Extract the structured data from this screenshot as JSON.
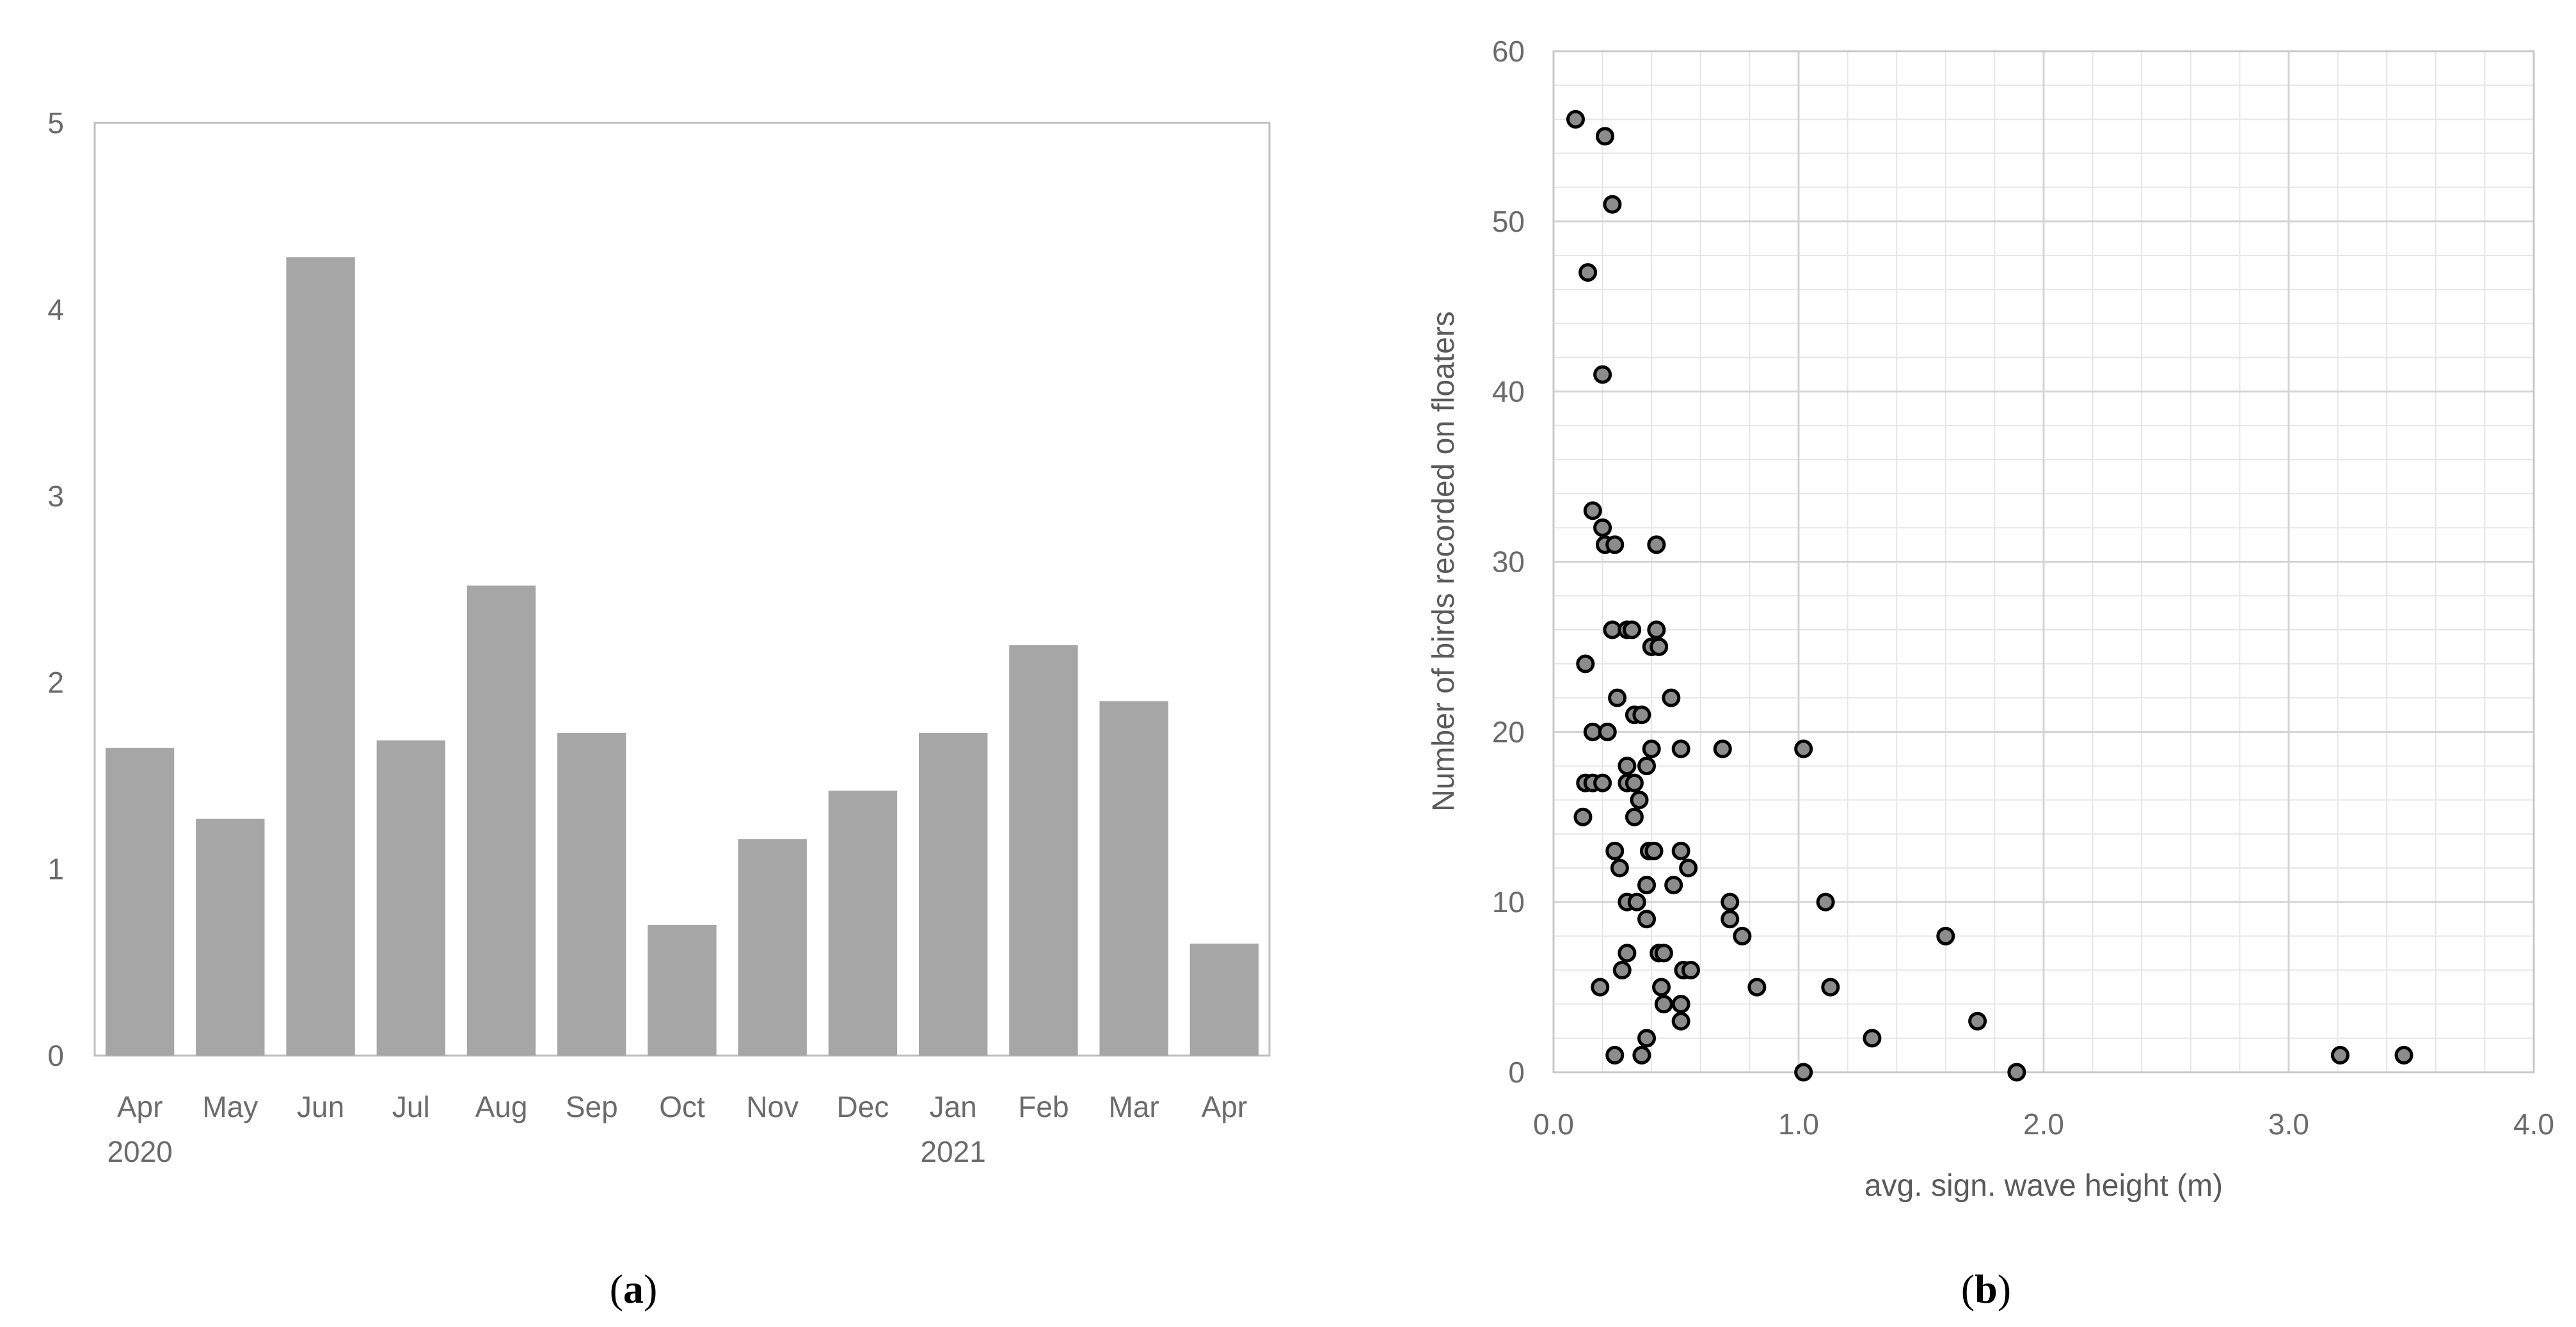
{
  "chart_data": [
    {
      "type": "bar",
      "panel_label": "(a)",
      "panel_letter": "a",
      "title": "",
      "xlabel": "",
      "ylabel": "",
      "ylim": [
        0,
        5
      ],
      "yticks": [
        "0",
        "1",
        "2",
        "3",
        "4",
        "5"
      ],
      "categories": [
        "Apr",
        "May",
        "Jun",
        "Jul",
        "Aug",
        "Sep",
        "Oct",
        "Nov",
        "Dec",
        "Jan",
        "Feb",
        "Mar",
        "Apr"
      ],
      "year_labels": [
        {
          "index": 0,
          "label": "2020"
        },
        {
          "index": 9,
          "label": "2021"
        }
      ],
      "values": [
        1.65,
        1.27,
        4.28,
        1.69,
        2.52,
        1.73,
        0.7,
        1.16,
        1.42,
        1.73,
        2.2,
        1.9,
        0.6
      ],
      "grid": false,
      "colors": {
        "bar": "#a6a6a6",
        "frame": "#bfbfbf"
      }
    },
    {
      "type": "scatter",
      "panel_label": "(b)",
      "panel_letter": "b",
      "title": "",
      "xlabel": "avg. sign. wave height (m)",
      "ylabel": "Number of birds recorded on floaters",
      "xlim": [
        0,
        4
      ],
      "ylim": [
        0,
        60
      ],
      "xticks": [
        "0.0",
        "1.0",
        "2.0",
        "3.0",
        "4.0"
      ],
      "yticks": [
        "0",
        "10",
        "20",
        "30",
        "40",
        "50",
        "60"
      ],
      "grid": true,
      "colors": {
        "marker_fill": "#8c8c8c",
        "marker_edge": "#000000",
        "grid_major": "#d4d4d4",
        "grid_minor": "#e6e6e6"
      },
      "points": [
        [
          0.09,
          56
        ],
        [
          0.21,
          55
        ],
        [
          0.24,
          51
        ],
        [
          0.14,
          47
        ],
        [
          0.2,
          41
        ],
        [
          0.16,
          33
        ],
        [
          0.2,
          32
        ],
        [
          0.21,
          31
        ],
        [
          0.25,
          31
        ],
        [
          0.42,
          31
        ],
        [
          0.24,
          26
        ],
        [
          0.3,
          26
        ],
        [
          0.32,
          26
        ],
        [
          0.42,
          26
        ],
        [
          0.4,
          25
        ],
        [
          0.43,
          25
        ],
        [
          0.13,
          24
        ],
        [
          0.26,
          22
        ],
        [
          0.48,
          22
        ],
        [
          0.33,
          21
        ],
        [
          0.36,
          21
        ],
        [
          0.16,
          20
        ],
        [
          0.22,
          20
        ],
        [
          0.4,
          19
        ],
        [
          0.52,
          19
        ],
        [
          0.69,
          19
        ],
        [
          1.02,
          19
        ],
        [
          0.3,
          18
        ],
        [
          0.38,
          18
        ],
        [
          0.13,
          17
        ],
        [
          0.16,
          17
        ],
        [
          0.2,
          17
        ],
        [
          0.3,
          17
        ],
        [
          0.33,
          17
        ],
        [
          0.35,
          16
        ],
        [
          0.12,
          15
        ],
        [
          0.33,
          15
        ],
        [
          0.25,
          13
        ],
        [
          0.39,
          13
        ],
        [
          0.41,
          13
        ],
        [
          0.52,
          13
        ],
        [
          0.27,
          12
        ],
        [
          0.55,
          12
        ],
        [
          0.38,
          11
        ],
        [
          0.49,
          11
        ],
        [
          0.3,
          10
        ],
        [
          0.34,
          10
        ],
        [
          0.72,
          10
        ],
        [
          1.11,
          10
        ],
        [
          0.38,
          9
        ],
        [
          0.72,
          9
        ],
        [
          0.77,
          8
        ],
        [
          1.6,
          8
        ],
        [
          0.3,
          7
        ],
        [
          0.43,
          7
        ],
        [
          0.45,
          7
        ],
        [
          0.28,
          6
        ],
        [
          0.53,
          6
        ],
        [
          0.56,
          6
        ],
        [
          0.19,
          5
        ],
        [
          0.44,
          5
        ],
        [
          0.83,
          5
        ],
        [
          1.13,
          5
        ],
        [
          0.45,
          4
        ],
        [
          0.52,
          4
        ],
        [
          0.52,
          3
        ],
        [
          1.73,
          3
        ],
        [
          0.38,
          2
        ],
        [
          1.3,
          2
        ],
        [
          0.25,
          1
        ],
        [
          0.36,
          1
        ],
        [
          3.21,
          1
        ],
        [
          3.47,
          1
        ],
        [
          1.02,
          0
        ],
        [
          1.89,
          0
        ]
      ]
    }
  ]
}
